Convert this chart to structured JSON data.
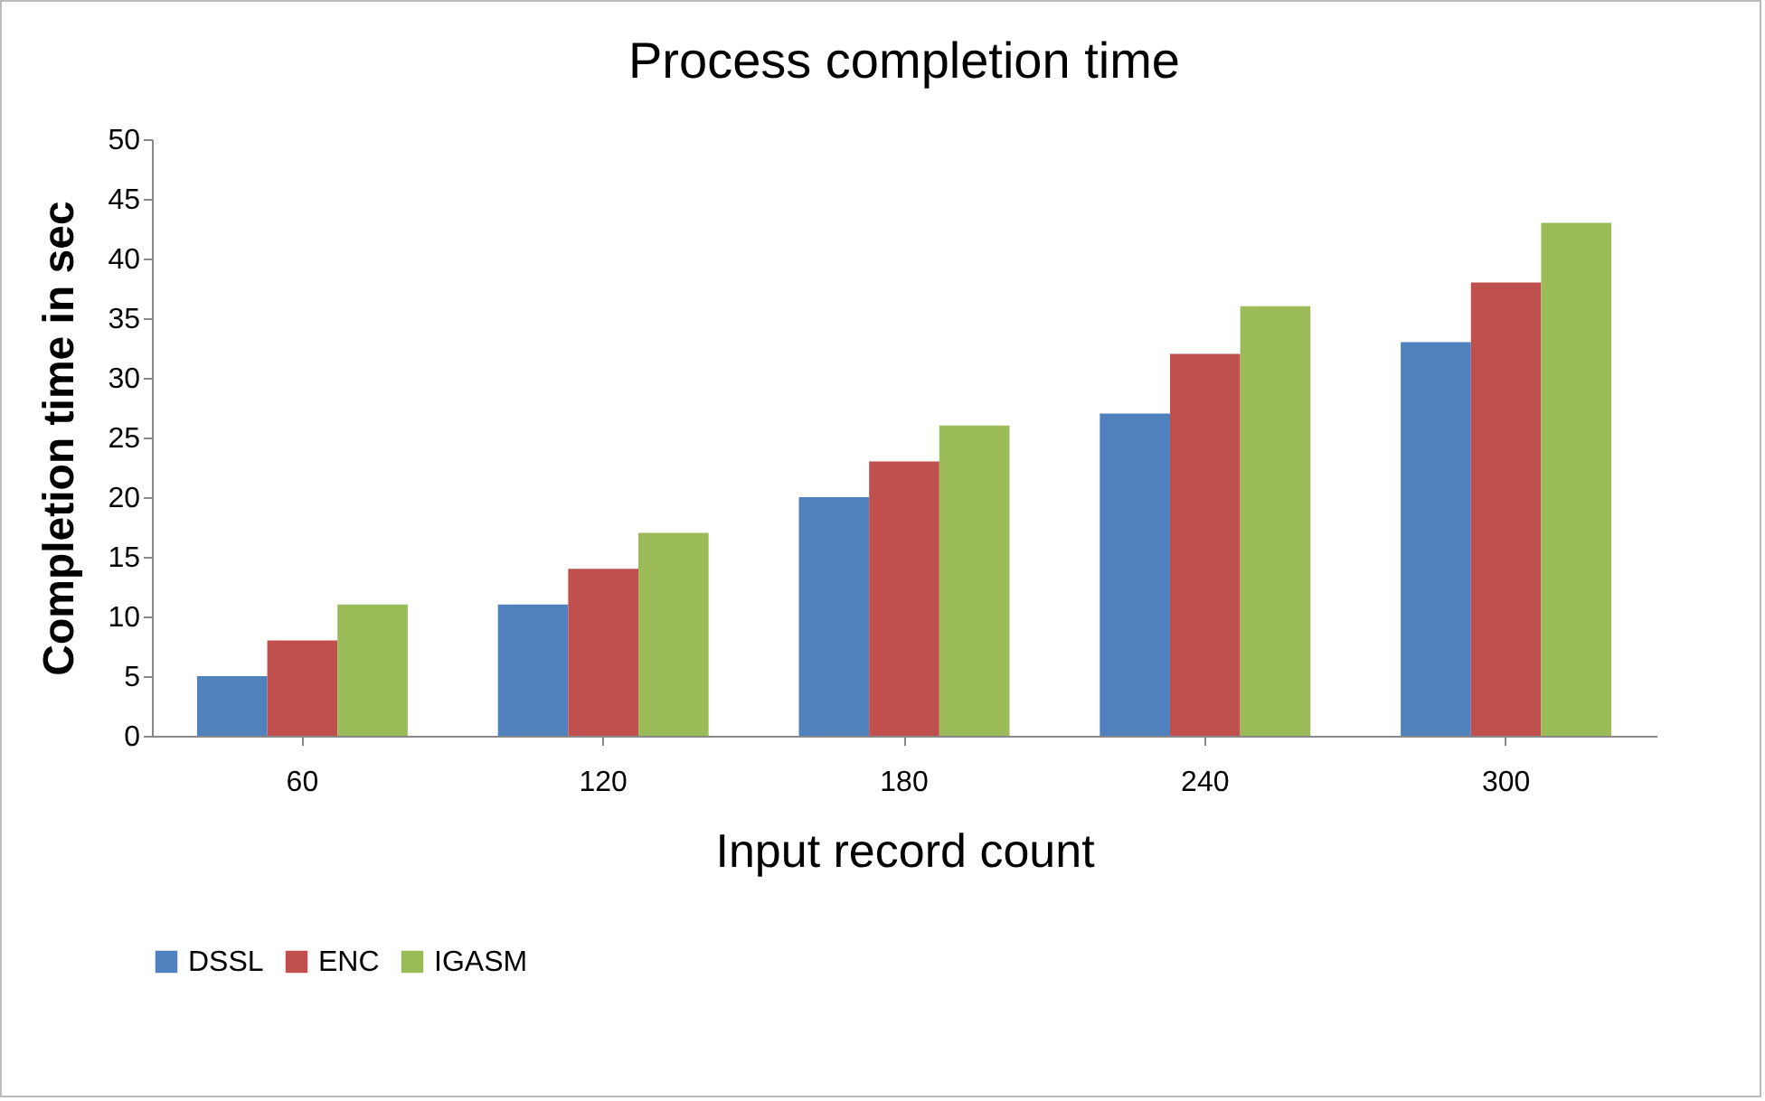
{
  "chart_data": {
    "type": "bar",
    "title": "Process completion time",
    "xlabel": "Input record count",
    "ylabel": "Completion time in sec",
    "categories": [
      "60",
      "120",
      "180",
      "240",
      "300"
    ],
    "series": [
      {
        "name": "DSSL",
        "color": "#4f81bd",
        "values": [
          5,
          11,
          20,
          27,
          33
        ]
      },
      {
        "name": "ENC",
        "color": "#c0504d",
        "values": [
          8,
          14,
          23,
          32,
          38
        ]
      },
      {
        "name": "IGASM",
        "color": "#9bbb59",
        "values": [
          11,
          17,
          26,
          36,
          43
        ]
      }
    ],
    "ylim": [
      0,
      50
    ],
    "yticks": [
      0,
      5,
      10,
      15,
      20,
      25,
      30,
      35,
      40,
      45,
      50
    ],
    "grid": false,
    "legend": "bottom"
  }
}
